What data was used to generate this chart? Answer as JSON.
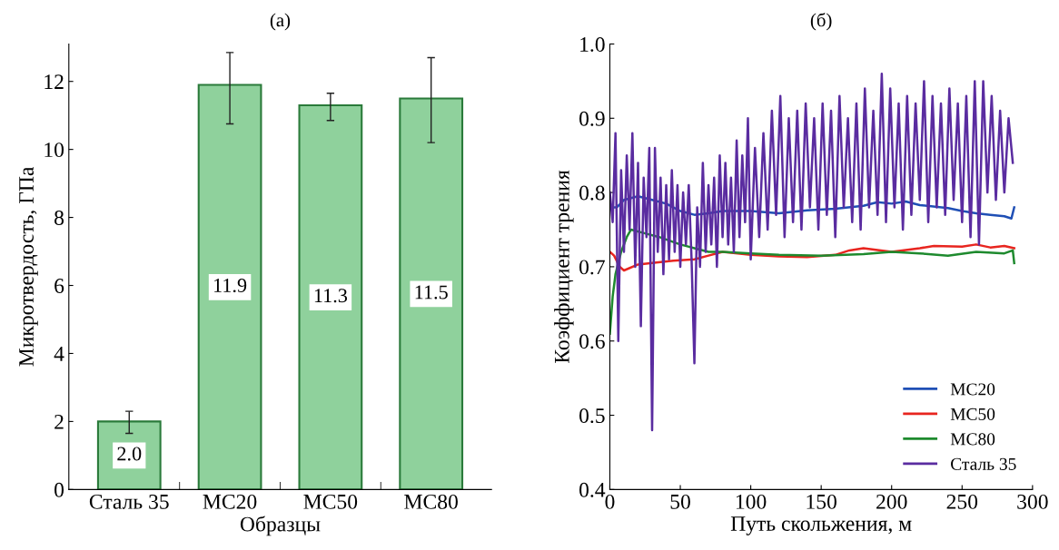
{
  "chart_data": [
    {
      "type": "bar",
      "title": "(a)",
      "xlabel": "Образцы",
      "ylabel": "Микротвердость, ГПа",
      "categories": [
        "Сталь 35",
        "MC20",
        "MC50",
        "MC80"
      ],
      "values": [
        2.0,
        11.9,
        11.3,
        11.5
      ],
      "color": "#8fd19c",
      "errors": [
        [
          1.65,
          2.3
        ],
        [
          10.75,
          12.85
        ],
        [
          10.85,
          11.65
        ],
        [
          10.2,
          12.7
        ]
      ],
      "value_labels": [
        "2.0",
        "11.9",
        "11.3",
        "11.5"
      ],
      "ylim": [
        0,
        13.1
      ],
      "yticks": [
        0,
        2,
        4,
        6,
        8,
        10,
        12
      ],
      "grid": false
    },
    {
      "type": "line",
      "title": "(б)",
      "xlabel": "Путь скольжения, м",
      "ylabel": "Коэффициент трения",
      "xlim": [
        0,
        300
      ],
      "xticks": [
        0,
        50,
        100,
        150,
        200,
        250,
        300
      ],
      "ylim": [
        0.4,
        1.0
      ],
      "yticks": [
        0.4,
        0.5,
        0.6,
        0.7,
        0.8,
        0.9,
        {
          "value": 1,
          "label": "1.0"
        }
      ],
      "grid": false,
      "legend": "bottom right",
      "marker": "none",
      "line_style": "solid",
      "series": [
        {
          "name": "MC20",
          "color": "#1f4fb5",
          "x": [
            0,
            5,
            10,
            20,
            30,
            40,
            50,
            60,
            70,
            80,
            100,
            120,
            140,
            160,
            180,
            190,
            200,
            210,
            220,
            240,
            250,
            260,
            270,
            280,
            285,
            287
          ],
          "values": [
            0.78,
            0.78,
            0.79,
            0.795,
            0.79,
            0.785,
            0.775,
            0.77,
            0.772,
            0.775,
            0.775,
            0.772,
            0.776,
            0.778,
            0.782,
            0.787,
            0.785,
            0.788,
            0.783,
            0.779,
            0.775,
            0.772,
            0.77,
            0.768,
            0.765,
            0.78
          ]
        },
        {
          "name": "MC50",
          "color": "#e8251f",
          "x": [
            0,
            3,
            7,
            10,
            20,
            30,
            45,
            60,
            70,
            80,
            100,
            120,
            140,
            160,
            170,
            180,
            200,
            220,
            230,
            250,
            260,
            270,
            280,
            287
          ],
          "values": [
            0.72,
            0.715,
            0.7,
            0.695,
            0.703,
            0.705,
            0.708,
            0.71,
            0.715,
            0.72,
            0.716,
            0.714,
            0.713,
            0.716,
            0.722,
            0.725,
            0.72,
            0.725,
            0.728,
            0.727,
            0.73,
            0.726,
            0.728,
            0.725
          ]
        },
        {
          "name": "MC80",
          "color": "#1e8a2e",
          "x": [
            0,
            2,
            4,
            8,
            12,
            15,
            25,
            35,
            50,
            60,
            70,
            80,
            100,
            120,
            150,
            180,
            200,
            220,
            240,
            260,
            280,
            286,
            287
          ],
          "values": [
            0.61,
            0.66,
            0.69,
            0.72,
            0.74,
            0.75,
            0.745,
            0.74,
            0.73,
            0.725,
            0.72,
            0.72,
            0.718,
            0.716,
            0.715,
            0.717,
            0.72,
            0.718,
            0.715,
            0.72,
            0.718,
            0.722,
            0.705
          ]
        },
        {
          "name": "Сталь 35",
          "color": "#5a2ca0",
          "x": [
            0,
            2,
            4,
            6,
            8,
            10,
            12,
            14,
            16,
            18,
            20,
            22,
            24,
            26,
            28,
            30,
            32,
            34,
            36,
            38,
            40,
            42,
            44,
            46,
            48,
            50,
            52,
            54,
            56,
            58,
            60,
            62,
            64,
            66,
            68,
            70,
            72,
            74,
            76,
            78,
            80,
            82,
            84,
            86,
            88,
            90,
            92,
            94,
            96,
            98,
            100,
            103,
            106,
            109,
            112,
            115,
            118,
            121,
            124,
            127,
            130,
            133,
            136,
            139,
            142,
            145,
            148,
            151,
            154,
            157,
            160,
            163,
            166,
            169,
            172,
            175,
            178,
            181,
            184,
            187,
            190,
            193,
            196,
            199,
            202,
            205,
            208,
            211,
            214,
            217,
            220,
            223,
            226,
            229,
            232,
            235,
            238,
            241,
            244,
            247,
            250,
            253,
            256,
            259,
            262,
            265,
            268,
            271,
            274,
            277,
            280,
            283,
            286
          ],
          "values": [
            0.8,
            0.76,
            0.88,
            0.6,
            0.83,
            0.72,
            0.85,
            0.75,
            0.88,
            0.7,
            0.84,
            0.62,
            0.82,
            0.74,
            0.86,
            0.48,
            0.86,
            0.72,
            0.82,
            0.69,
            0.81,
            0.71,
            0.83,
            0.72,
            0.81,
            0.7,
            0.8,
            0.73,
            0.81,
            0.71,
            0.57,
            0.78,
            0.7,
            0.84,
            0.72,
            0.81,
            0.73,
            0.82,
            0.7,
            0.85,
            0.74,
            0.84,
            0.73,
            0.82,
            0.72,
            0.87,
            0.74,
            0.85,
            0.76,
            0.9,
            0.71,
            0.86,
            0.74,
            0.88,
            0.75,
            0.91,
            0.77,
            0.93,
            0.74,
            0.9,
            0.76,
            0.91,
            0.75,
            0.92,
            0.78,
            0.9,
            0.75,
            0.92,
            0.77,
            0.91,
            0.74,
            0.93,
            0.78,
            0.9,
            0.76,
            0.92,
            0.75,
            0.94,
            0.78,
            0.91,
            0.77,
            0.96,
            0.76,
            0.94,
            0.78,
            0.92,
            0.75,
            0.93,
            0.77,
            0.92,
            0.79,
            0.95,
            0.76,
            0.93,
            0.78,
            0.92,
            0.77,
            0.94,
            0.79,
            0.92,
            0.76,
            0.93,
            0.74,
            0.95,
            0.73,
            0.95,
            0.8,
            0.93,
            0.79,
            0.91,
            0.8,
            0.9,
            0.84
          ]
        }
      ]
    }
  ]
}
